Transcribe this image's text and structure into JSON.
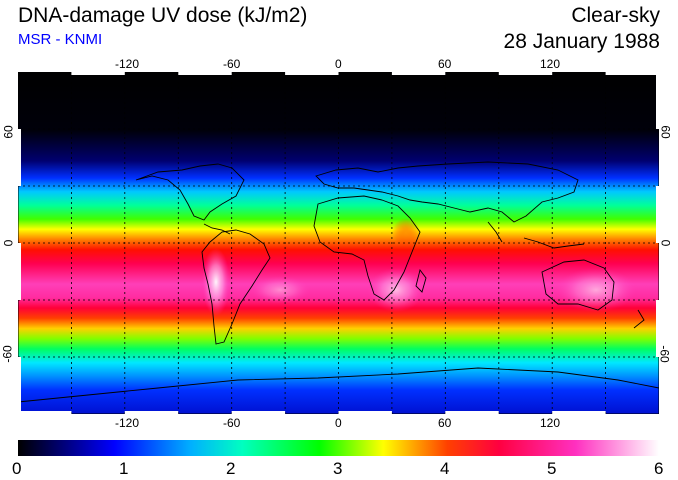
{
  "header": {
    "title": "DNA-damage UV dose (kJ/m2)",
    "source": "MSR - KNMI",
    "condition": "Clear-sky",
    "date": "28 January 1988"
  },
  "map": {
    "lon_ticks": [
      "-120",
      "-60",
      "0",
      "60",
      "120"
    ],
    "lat_ticks": [
      "60",
      "0",
      "-60"
    ],
    "lon_range": [
      -180,
      180
    ],
    "lat_range": [
      -90,
      90
    ],
    "gridlines": "dashed every 30 degrees"
  },
  "colorbar": {
    "labels": [
      "0",
      "1",
      "2",
      "3",
      "4",
      "5",
      "6"
    ],
    "range": [
      0,
      6
    ],
    "stops": [
      {
        "value": 0.0,
        "color": "#000000"
      },
      {
        "value": 0.9,
        "color": "#0000ff"
      },
      {
        "value": 1.6,
        "color": "#00b0ff"
      },
      {
        "value": 2.1,
        "color": "#00ffc0"
      },
      {
        "value": 2.8,
        "color": "#00ff00"
      },
      {
        "value": 3.4,
        "color": "#ffff00"
      },
      {
        "value": 4.0,
        "color": "#ff4000"
      },
      {
        "value": 4.5,
        "color": "#ff0040"
      },
      {
        "value": 5.2,
        "color": "#ff30c0"
      },
      {
        "value": 6.0,
        "color": "#ffffff"
      }
    ]
  }
}
